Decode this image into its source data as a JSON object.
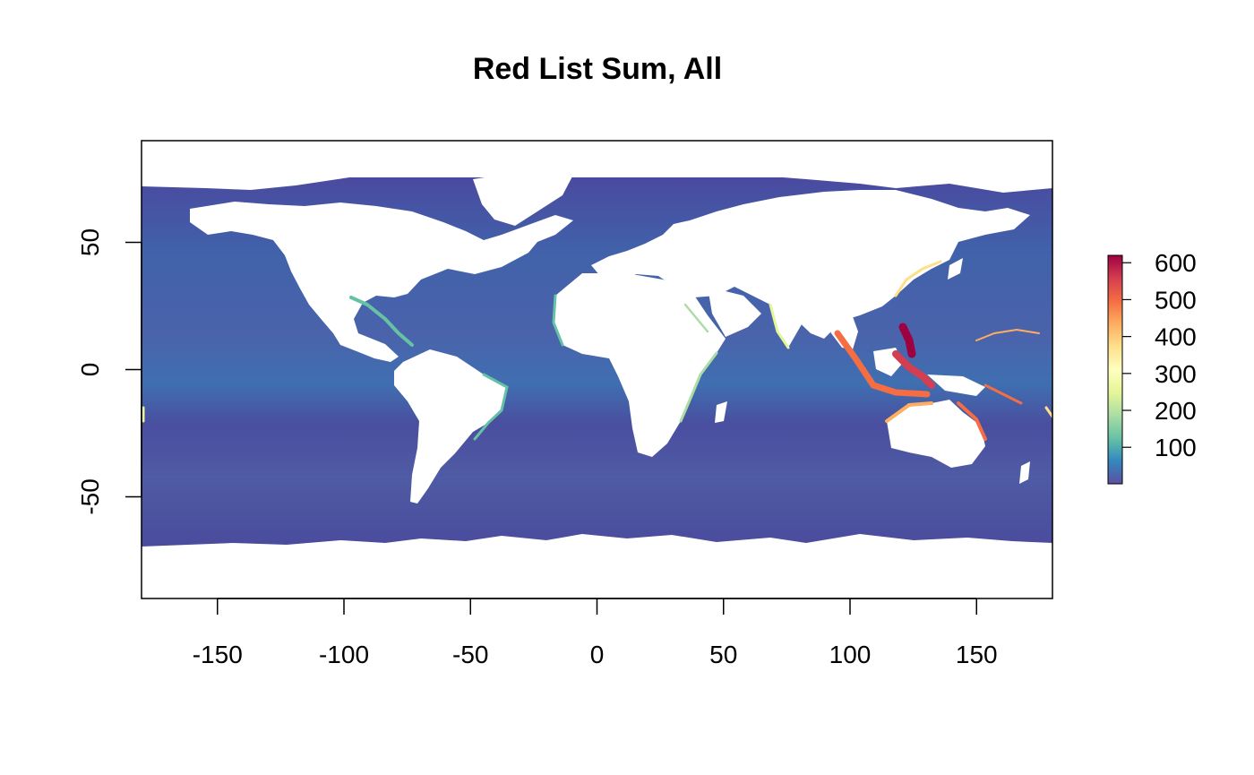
{
  "title": "Red List Sum, All",
  "map": {
    "x_range": [
      -180,
      180
    ],
    "y_range": [
      -90,
      90
    ],
    "x_ticks": [
      -150,
      -100,
      -50,
      0,
      50,
      100,
      150
    ],
    "y_ticks": [
      -50,
      0,
      50
    ],
    "x_tick_labels": [
      "-150",
      "-100",
      "-50",
      "0",
      "50",
      "100",
      "150"
    ],
    "y_tick_labels": [
      "-50",
      "0",
      "50"
    ],
    "data_extent_lat": [
      -72,
      82
    ],
    "background": "#ffffff",
    "ocean_base_color": "#3f5aa6"
  },
  "legend": {
    "range": [
      1,
      620
    ],
    "ticks": [
      100,
      200,
      300,
      400,
      500,
      600
    ],
    "tick_labels": [
      "100",
      "200",
      "300",
      "400",
      "500",
      "600"
    ],
    "palette": [
      "#5e4fa2",
      "#3288bd",
      "#66c2a5",
      "#abdda4",
      "#e6f598",
      "#ffffbf",
      "#fee08b",
      "#fdae61",
      "#f46d43",
      "#d53e4f",
      "#9e0142"
    ]
  }
}
